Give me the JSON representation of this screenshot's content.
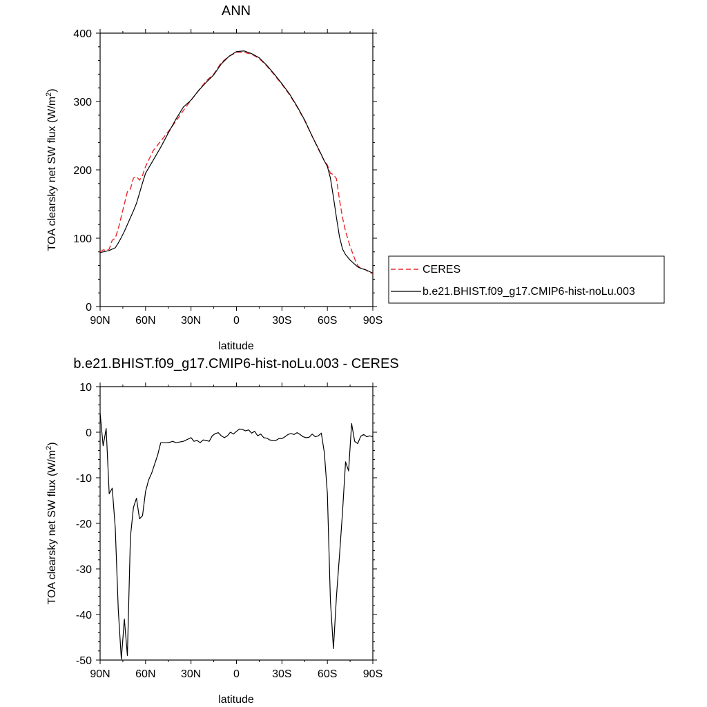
{
  "chart_data": [
    {
      "type": "line",
      "title": "ANN",
      "xlabel": "latitude",
      "ylabel_main": "TOA clearsky net SW flux (W/m",
      "ylabel_sup": "2",
      "ylabel_tail": ")",
      "xlim": [
        -90,
        90
      ],
      "ylim": [
        0,
        400
      ],
      "x_ticks": [
        -90,
        -60,
        -30,
        0,
        30,
        60,
        90
      ],
      "x_tick_labels": [
        "90N",
        "60N",
        "30N",
        "0",
        "30S",
        "60S",
        "90S"
      ],
      "y_ticks": [
        0,
        100,
        200,
        300,
        400
      ],
      "y_tick_labels": [
        "0",
        "100",
        "200",
        "300",
        "400"
      ],
      "grid": false,
      "legend": "right, outside",
      "series": [
        {
          "name": "CERES",
          "color": "#e8272b",
          "style": "dashed",
          "x": [
            -90,
            -88,
            -86,
            -84,
            -82,
            -80,
            -78,
            -76,
            -74,
            -72,
            -70,
            -68,
            -66,
            -64,
            -62,
            -60,
            -55,
            -50,
            -45,
            -40,
            -35,
            -30,
            -25,
            -20,
            -15,
            -10,
            -5,
            0,
            5,
            10,
            15,
            20,
            25,
            30,
            35,
            40,
            45,
            50,
            55,
            58,
            60,
            62,
            64,
            66,
            68,
            70,
            72,
            75,
            78,
            80,
            82,
            85,
            88,
            90
          ],
          "y": [
            80,
            83,
            82,
            84,
            97,
            100,
            114,
            132,
            150,
            168,
            172,
            188,
            190,
            185,
            192,
            205,
            228,
            242,
            256,
            271,
            287,
            302,
            316,
            330,
            340,
            357,
            366,
            372,
            372,
            369,
            363,
            352,
            339,
            325,
            310,
            292,
            272,
            249,
            226,
            213,
            207,
            195,
            193,
            187,
            156,
            130,
            110,
            88,
            70,
            60,
            56,
            54,
            50,
            48
          ]
        },
        {
          "name": "b.e21.BHIST.f09_g17.CMIP6-hist-noLu.003",
          "color": "#000000",
          "style": "solid",
          "x": [
            -90,
            -88,
            -86,
            -84,
            -82,
            -80,
            -78,
            -76,
            -74,
            -72,
            -70,
            -68,
            -66,
            -64,
            -62,
            -60,
            -55,
            -50,
            -45,
            -40,
            -35,
            -30,
            -25,
            -20,
            -15,
            -10,
            -5,
            0,
            5,
            10,
            15,
            20,
            25,
            30,
            35,
            40,
            45,
            50,
            55,
            58,
            60,
            62,
            64,
            66,
            68,
            70,
            72,
            75,
            78,
            80,
            82,
            85,
            88,
            90
          ],
          "y": [
            79,
            80,
            81,
            82,
            84,
            86,
            93,
            101,
            110,
            120,
            130,
            140,
            151,
            166,
            181,
            195,
            214,
            233,
            254,
            274,
            292,
            302,
            316,
            328,
            339,
            355,
            366,
            373,
            374,
            370,
            364,
            353,
            340,
            326,
            311,
            293,
            273,
            249,
            227,
            213,
            205,
            188,
            160,
            130,
            102,
            84,
            76,
            68,
            62,
            58,
            56,
            54,
            51,
            49
          ]
        }
      ]
    },
    {
      "type": "line",
      "title": "b.e21.BHIST.f09_g17.CMIP6-hist-noLu.003 - CERES",
      "xlabel": "latitude",
      "ylabel_main": "TOA clearsky net SW flux (W/m",
      "ylabel_sup": "2",
      "ylabel_tail": ")",
      "xlim": [
        -90,
        90
      ],
      "ylim": [
        -50,
        10
      ],
      "x_ticks": [
        -90,
        -60,
        -30,
        0,
        30,
        60,
        90
      ],
      "x_tick_labels": [
        "90N",
        "60N",
        "30N",
        "0",
        "30S",
        "60S",
        "90S"
      ],
      "y_ticks": [
        -50,
        -40,
        -30,
        -20,
        -10,
        0,
        10
      ],
      "y_tick_labels": [
        "-50",
        "-40",
        "-30",
        "-20",
        "-10",
        "0",
        "10"
      ],
      "grid": false,
      "series": [
        {
          "color": "#000000",
          "style": "solid",
          "x": [
            -90,
            -88,
            -86,
            -84,
            -82,
            -80,
            -78,
            -76,
            -74,
            -72,
            -70,
            -68,
            -66,
            -64,
            -62,
            -60,
            -58,
            -56,
            -54,
            -52,
            -50,
            -48,
            -46,
            -44,
            -42,
            -40,
            -35,
            -30,
            -28,
            -26,
            -24,
            -22,
            -20,
            -18,
            -16,
            -14,
            -12,
            -10,
            -8,
            -6,
            -4,
            -2,
            0,
            2,
            4,
            6,
            8,
            10,
            12,
            14,
            16,
            18,
            20,
            22,
            24,
            26,
            28,
            30,
            32,
            34,
            36,
            38,
            40,
            42,
            44,
            46,
            48,
            50,
            52,
            54,
            56,
            58,
            60,
            62,
            64,
            66,
            68,
            70,
            72,
            74,
            76,
            78,
            80,
            82,
            84,
            86,
            88,
            90
          ],
          "y": [
            4.2,
            -3.0,
            0.8,
            -13.5,
            -12.3,
            -21.0,
            -39.0,
            -49.8,
            -41.0,
            -49.0,
            -23.0,
            -16.5,
            -14.5,
            -19.0,
            -18.3,
            -13.0,
            -10.5,
            -9.0,
            -7.0,
            -5.0,
            -2.3,
            -2.3,
            -2.3,
            -2.2,
            -2.0,
            -2.3,
            -2.0,
            -1.2,
            -2.0,
            -1.8,
            -2.3,
            -1.7,
            -1.8,
            -2.0,
            -0.8,
            -0.3,
            -0.1,
            -0.8,
            -1.2,
            -0.8,
            0.0,
            -0.4,
            0.2,
            0.7,
            0.6,
            0.3,
            0.5,
            -0.2,
            0.2,
            -0.8,
            -0.4,
            -1.2,
            -1.3,
            -1.7,
            -1.8,
            -1.8,
            -1.4,
            -1.4,
            -1.0,
            -0.5,
            -0.3,
            -0.5,
            -0.1,
            -0.5,
            -1.0,
            -1.2,
            -1.1,
            -0.4,
            -1.0,
            -0.8,
            -0.2,
            -4.5,
            -13.5,
            -37.0,
            -47.5,
            -36.0,
            -27.0,
            -17.5,
            -6.5,
            -8.5,
            1.9,
            -2.0,
            -2.5,
            -0.9,
            -0.5,
            -1.0,
            -0.8,
            -1.0
          ]
        }
      ]
    }
  ]
}
